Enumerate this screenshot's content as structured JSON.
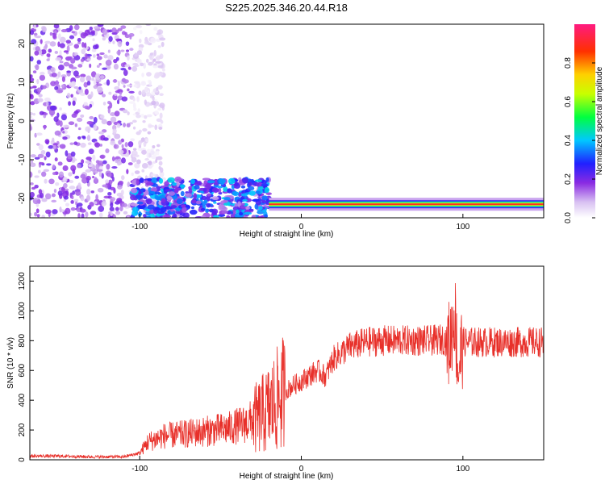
{
  "title": "S225.2025.346.20.44.R18",
  "colors": {
    "snr_line": "#e8302a",
    "axis": "#000000",
    "background": "#ffffff"
  },
  "chart_data": [
    {
      "type": "heatmap",
      "xlabel": "Height of straight line (km)",
      "ylabel": "Frequency (Hz)",
      "xlim": [
        -168,
        150
      ],
      "ylim": [
        -25,
        25
      ],
      "xticks": [
        "-100",
        "0",
        "100"
      ],
      "yticks": [
        "-20",
        "-10",
        "0",
        "10",
        "20"
      ],
      "colorbar": {
        "label": "Normalized spectral amplitude",
        "range": [
          0,
          1
        ],
        "ticks": [
          "0.0",
          "0.2",
          "0.4",
          "0.6",
          "0.8"
        ],
        "colormap": "rainbow-white-purple-blue-cyan-green-yellow-red-pink"
      },
      "features": [
        {
          "name": "scattered noise",
          "x_range": [
            -168,
            -105
          ],
          "y_range": [
            -25,
            25
          ],
          "amplitude": 0.2
        },
        {
          "name": "low-band noise",
          "x_range": [
            -105,
            -20
          ],
          "y_range": [
            -25,
            -15
          ],
          "amplitude": 0.35
        },
        {
          "name": "carrier",
          "x_range": [
            -20,
            150
          ],
          "frequency": -21.5,
          "amplitude": 0.9
        }
      ]
    },
    {
      "type": "line",
      "xlabel": "Height of straight line (km)",
      "ylabel": "SNR (10 * v/v)",
      "xlim": [
        -168,
        150
      ],
      "ylim": [
        0,
        1300
      ],
      "xticks": [
        "-100",
        "0",
        "100"
      ],
      "yticks": [
        "0",
        "200",
        "400",
        "600",
        "800",
        "1000",
        "1200"
      ],
      "series": [
        {
          "x": [
            -168,
            -150,
            -130,
            -110,
            -100,
            -95,
            -85,
            -75,
            -60,
            -45,
            -35,
            -27,
            -20,
            -15,
            -10,
            -5,
            0,
            10,
            15,
            20,
            30,
            40,
            50,
            60,
            70,
            80,
            88,
            92,
            95,
            97,
            100,
            110,
            120,
            130,
            140,
            150
          ],
          "y": [
            25,
            25,
            20,
            20,
            45,
            120,
            160,
            170,
            190,
            210,
            240,
            280,
            340,
            400,
            460,
            500,
            530,
            600,
            560,
            680,
            760,
            790,
            800,
            800,
            800,
            800,
            810,
            780,
            1000,
            600,
            790,
            790,
            790,
            790,
            790,
            790
          ]
        }
      ]
    }
  ]
}
